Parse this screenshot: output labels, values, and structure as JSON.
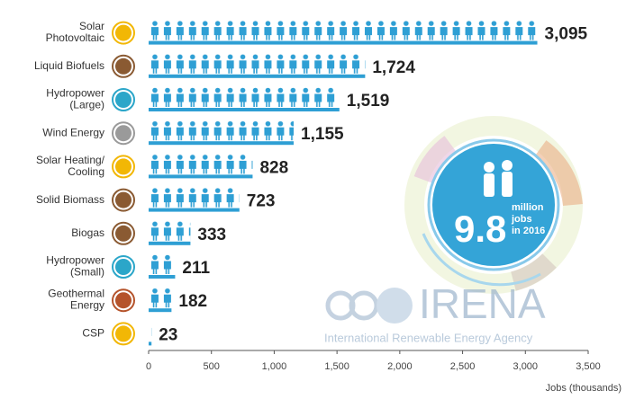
{
  "chart_data": {
    "type": "bar",
    "orientation": "horizontal",
    "categories": [
      "Solar\nPhotovoltaic",
      "Liquid Biofuels",
      "Hydropower\n(Large)",
      "Wind Energy",
      "Solar Heating/\nCooling",
      "Solid Biomass",
      "Biogas",
      "Hydropower\n(Small)",
      "Geothermal\nEnergy",
      "CSP"
    ],
    "values": [
      3095,
      1724,
      1519,
      1155,
      828,
      723,
      333,
      211,
      182,
      23
    ],
    "value_labels": [
      "3,095",
      "1,724",
      "1,519",
      "1,155",
      "828",
      "723",
      "333",
      "211",
      "182",
      "23"
    ],
    "color": "#2e9fd4",
    "icon_colors": [
      "#f2b705",
      "#8a5a32",
      "#2ba6c9",
      "#9a9a9a",
      "#f2b705",
      "#8a5a32",
      "#8a5a32",
      "#2ba6c9",
      "#b5532b",
      "#f2b705"
    ],
    "xlim": [
      0,
      3500
    ],
    "xticks": [
      0,
      500,
      {
        "value": 1000,
        "label": "1,000"
      },
      {
        "value": 1500,
        "label": "1,500"
      },
      {
        "value": 2000,
        "label": "2,000"
      },
      {
        "value": 2500,
        "label": "2,500"
      },
      {
        "value": 3000,
        "label": "3,000"
      },
      {
        "value": 3500,
        "label": "3,500"
      }
    ],
    "xlabel": "Jobs (thousands)",
    "annotation": {
      "number": "9.8",
      "text": "million\njobs\nin 2016"
    },
    "watermark": {
      "name": "IRENA",
      "subtitle": "International Renewable Energy Agency"
    }
  }
}
